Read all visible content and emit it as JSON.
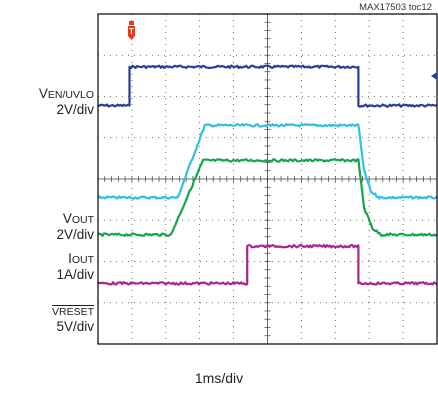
{
  "figure_id": "MAX17503 toc12",
  "time_scale": "1ms/div",
  "trigger_marker": "T",
  "colors": {
    "en_uvlo": "#2b3d9a",
    "vout": "#33bfe0",
    "iout": "#16a64a",
    "reset": "#a8288f",
    "grid": "#444444",
    "frame": "#000000"
  },
  "labels": {
    "en_main": "V",
    "en_sub": "EN/UVLO",
    "en_scale": "2V/div",
    "vout_main": "V",
    "vout_sub": "OUT",
    "vout_scale": "2V/div",
    "iout_main": "I",
    "iout_sub": "OUT",
    "iout_scale": "1A/div",
    "reset_main": "V",
    "reset_sub": "RESET",
    "reset_scale": "5V/div"
  },
  "chart_data": {
    "type": "line",
    "x_unit": "div",
    "y_unit": "div",
    "xlim": [
      0,
      10
    ],
    "ylim": [
      0,
      8
    ],
    "grid": true,
    "series": [
      {
        "key": "en_uvlo",
        "x": [
          0,
          0.93,
          0.93,
          7.68,
          7.68,
          10
        ],
        "y": [
          5.78,
          5.78,
          6.72,
          6.72,
          5.78,
          5.78
        ]
      },
      {
        "key": "vout",
        "x": [
          0,
          2.35,
          3.15,
          7.68,
          7.85,
          8.05,
          8.3,
          10
        ],
        "y": [
          3.55,
          3.55,
          5.3,
          5.3,
          4.2,
          3.7,
          3.55,
          3.55
        ]
      },
      {
        "key": "iout",
        "x": [
          0,
          2.15,
          3.1,
          7.68,
          7.85,
          8.1,
          8.35,
          10
        ],
        "y": [
          2.65,
          2.65,
          4.45,
          4.45,
          3.3,
          2.8,
          2.65,
          2.65
        ]
      },
      {
        "key": "reset",
        "x": [
          0,
          4.4,
          4.4,
          7.68,
          7.68,
          10
        ],
        "y": [
          1.47,
          1.47,
          2.37,
          2.37,
          1.47,
          1.47
        ]
      }
    ]
  }
}
